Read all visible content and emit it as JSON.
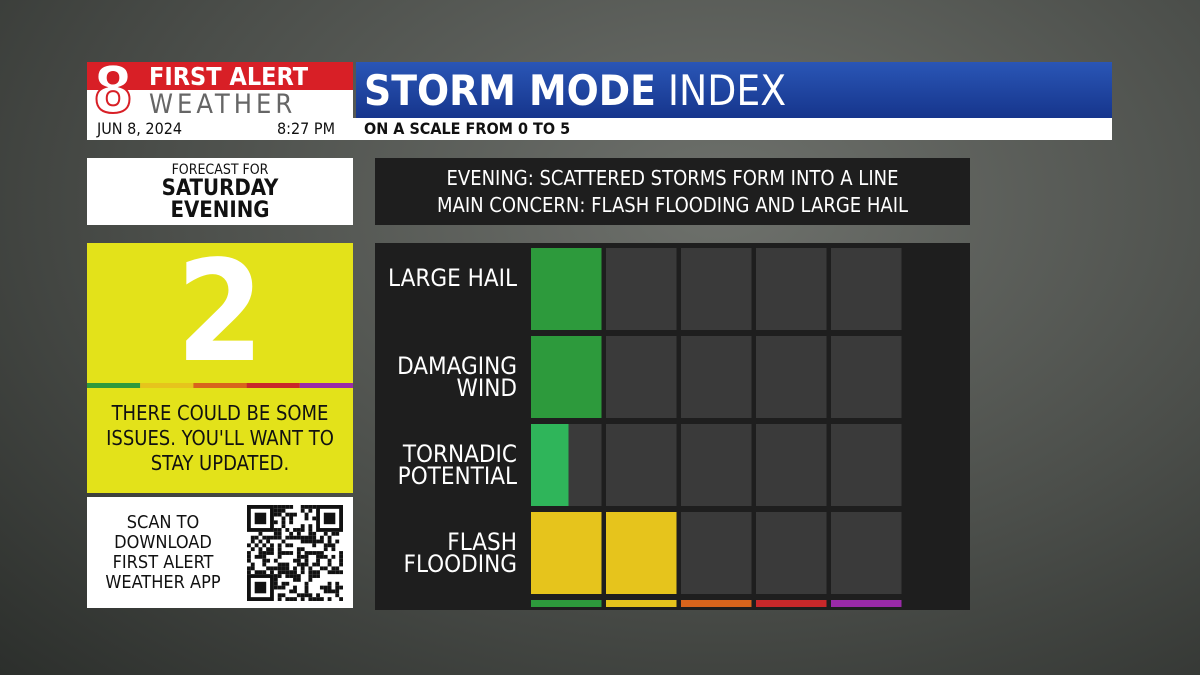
{
  "header": {
    "brand_top": "FIRST ALERT",
    "brand_bottom": "WEATHER",
    "channel": "8",
    "title_bold": "STORM MODE",
    "title_rest": "INDEX",
    "date": "JUN 8, 2024",
    "time": "8:27 PM",
    "subtitle": "ON A SCALE FROM 0 TO 5"
  },
  "forecast": {
    "label": "FORECAST FOR",
    "day": "SATURDAY EVENING"
  },
  "index": {
    "level": "2",
    "color": "#e3e21a",
    "description": "THERE COULD BE SOME ISSUES. YOU'LL WANT TO STAY UPDATED."
  },
  "app": {
    "text": "SCAN TO DOWNLOAD FIRST ALERT WEATHER APP"
  },
  "summary": {
    "line1": "EVENING: SCATTERED STORMS FORM INTO A LINE",
    "line2": "MAIN CONCERN: FLASH FLOODING AND LARGE HAIL"
  },
  "chart_data": {
    "type": "bar",
    "orientation": "horizontal",
    "categories": [
      "LARGE HAIL",
      "DAMAGING WIND",
      "TORNADIC POTENTIAL",
      "FLASH FLOODING"
    ],
    "values": [
      1,
      1,
      0.5,
      2
    ],
    "colors": [
      "#2d9a3c",
      "#2d9a3c",
      "#2fb55a",
      "#e6c41c"
    ],
    "xlim": [
      0,
      5
    ],
    "scale_colors": [
      "#2d9a3c",
      "#e6c41c",
      "#d8641c",
      "#c8282a",
      "#9a2aa8"
    ]
  }
}
